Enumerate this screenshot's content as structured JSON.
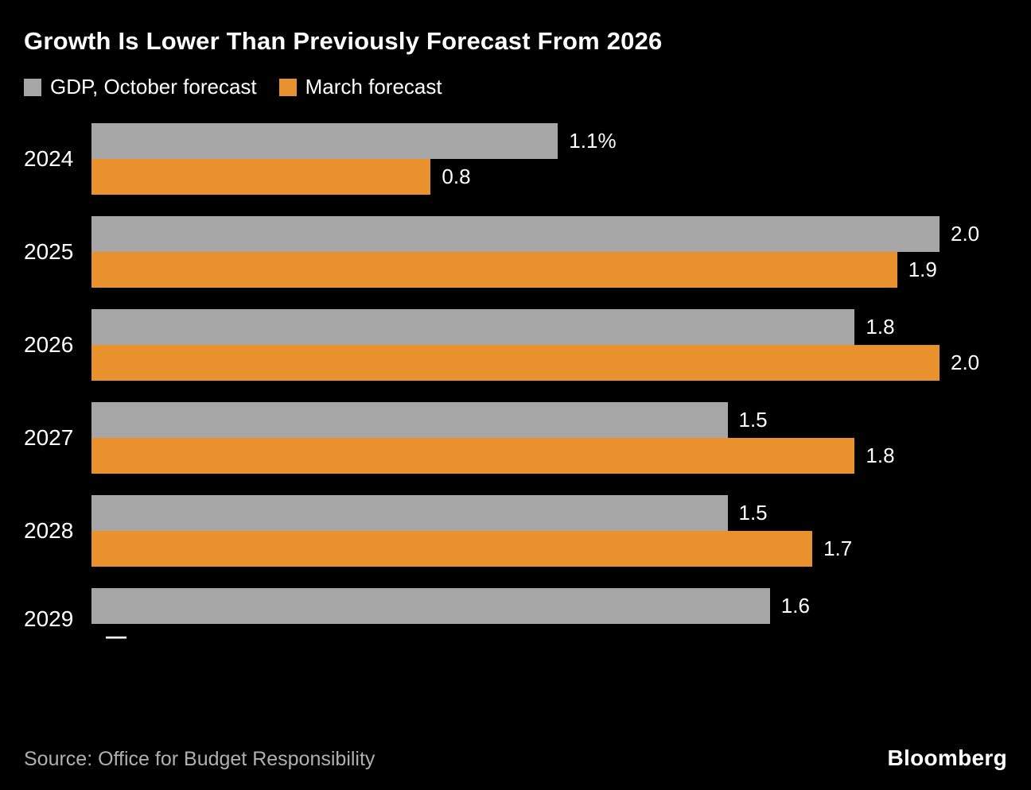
{
  "chart_data": {
    "type": "bar",
    "orientation": "horizontal",
    "title": "Growth Is Lower Than Previously Forecast From 2026",
    "categories": [
      "2024",
      "2025",
      "2026",
      "2027",
      "2028",
      "2029"
    ],
    "series": [
      {
        "name": "GDP, October forecast",
        "color": "#a6a6a6",
        "values": [
          1.1,
          2.0,
          1.8,
          1.5,
          1.5,
          1.6
        ],
        "labels": [
          "1.1%",
          "2.0",
          "1.8",
          "1.5",
          "1.5",
          "1.6"
        ]
      },
      {
        "name": "March forecast",
        "color": "#e8912d",
        "values": [
          0.8,
          1.9,
          2.0,
          1.8,
          1.7,
          null
        ],
        "labels": [
          "0.8",
          "1.9",
          "2.0",
          "1.8",
          "1.7",
          "—"
        ]
      }
    ],
    "xlim": [
      0,
      2.0
    ],
    "grid": false,
    "legend_position": "top-left"
  },
  "footer": {
    "source": "Source: Office for Budget Responsibility",
    "brand": "Bloomberg"
  }
}
